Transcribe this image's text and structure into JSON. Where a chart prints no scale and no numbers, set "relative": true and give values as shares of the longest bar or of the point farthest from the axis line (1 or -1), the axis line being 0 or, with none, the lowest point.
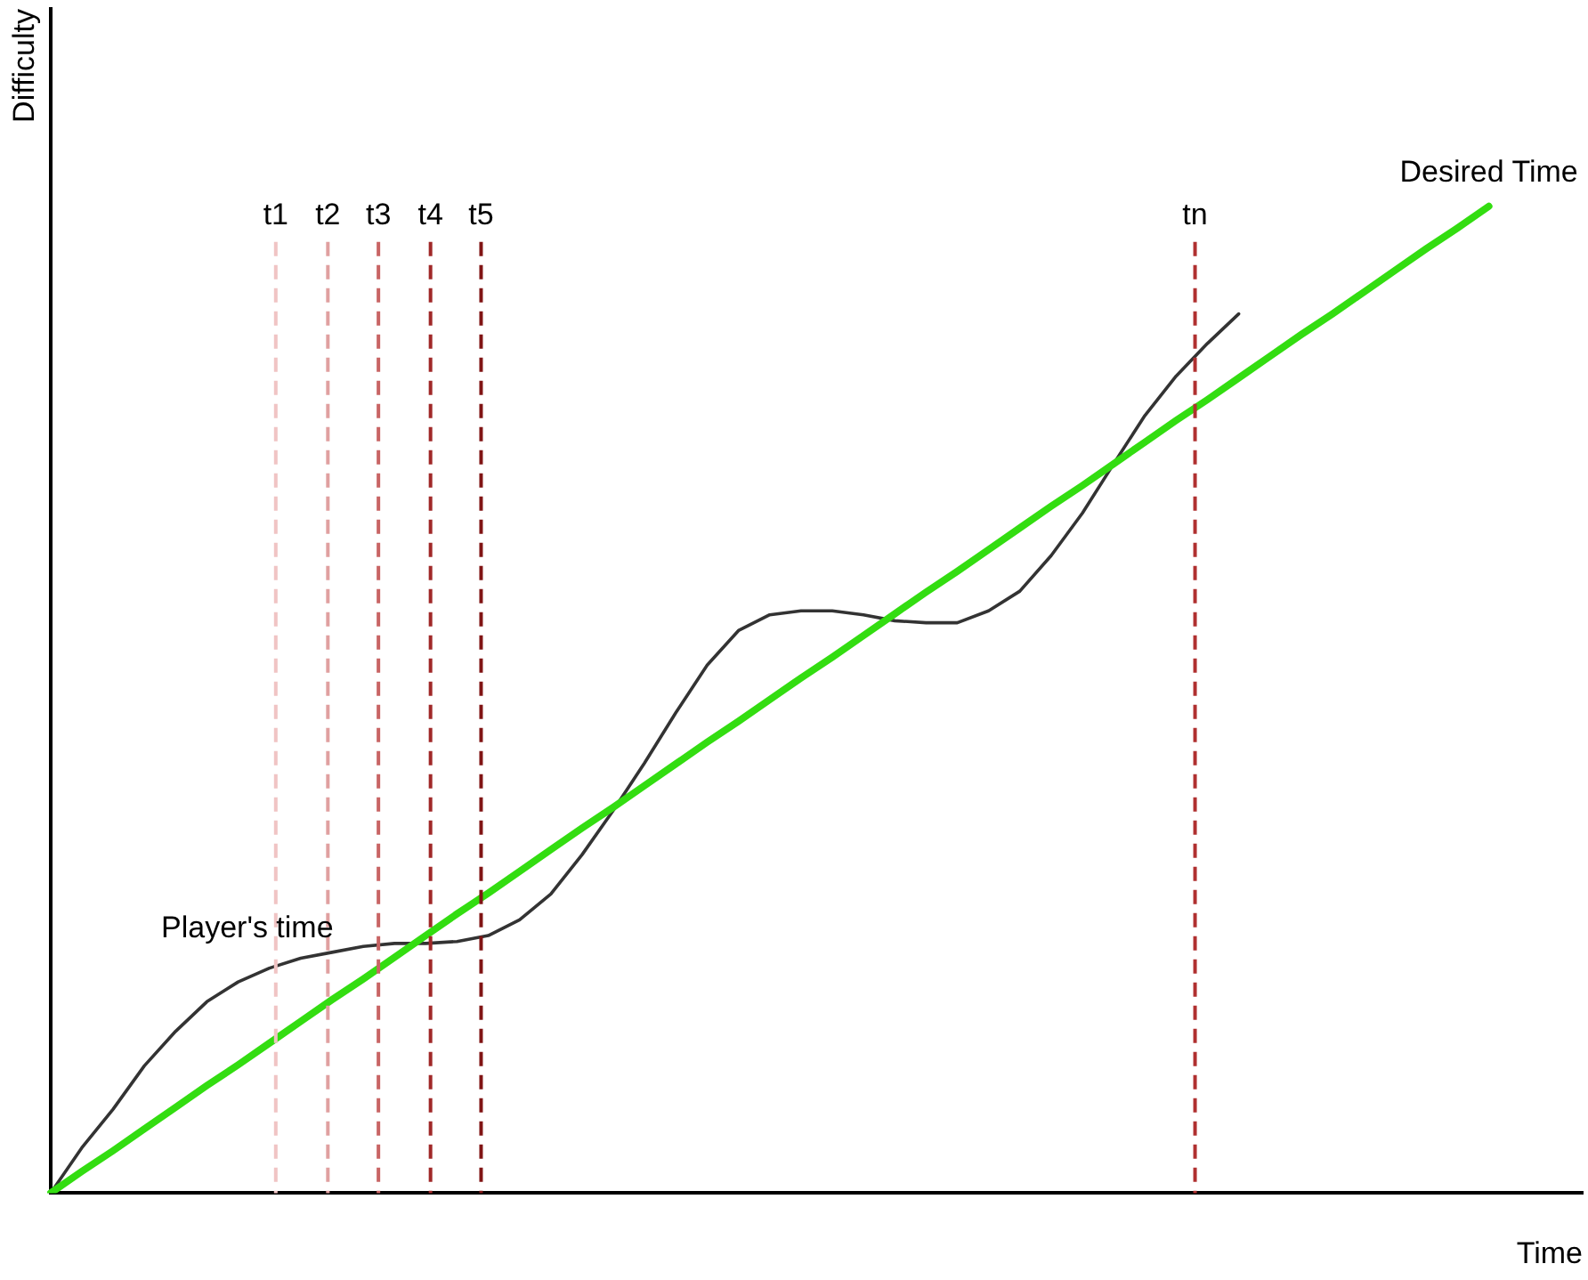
{
  "chart_data": {
    "type": "line",
    "relative": true,
    "xlabel": "Time",
    "ylabel": "Difficulty",
    "grid": false,
    "legend": false,
    "marker": "none",
    "line_style": "solid",
    "categories": [
      null,
      null,
      null,
      null,
      null,
      null,
      null,
      null,
      null,
      null,
      null,
      null,
      null,
      null,
      null,
      null,
      null,
      null,
      null,
      null,
      null,
      null,
      null,
      null,
      null,
      null,
      null,
      null,
      null,
      null,
      null,
      null,
      null,
      null,
      null,
      null,
      null,
      null,
      null,
      null,
      null,
      null,
      null,
      null,
      null,
      null,
      null,
      null,
      null,
      null
    ],
    "series": [
      {
        "name": "Desired Time",
        "color": "#33dd11",
        "values": [
          0,
          0.022,
          0.043,
          0.065,
          0.087,
          0.109,
          0.13,
          0.152,
          0.174,
          0.196,
          0.217,
          0.239,
          0.261,
          0.283,
          0.304,
          0.326,
          0.348,
          0.37,
          0.391,
          0.413,
          0.435,
          0.457,
          0.478,
          0.5,
          0.522,
          0.543,
          0.565,
          0.587,
          0.609,
          0.63,
          0.652,
          0.674,
          0.696,
          0.717,
          0.739,
          0.761,
          0.783,
          0.804,
          0.826,
          0.848,
          0.87,
          0.891,
          0.913,
          0.935,
          0.957,
          0.978,
          1,
          null,
          null,
          null
        ]
      },
      {
        "name": "Player's time",
        "color": "#333333",
        "values": [
          0,
          0.046,
          0.085,
          0.129,
          0.164,
          0.194,
          0.214,
          0.228,
          0.238,
          0.244,
          0.25,
          0.253,
          0.253,
          0.255,
          0.261,
          0.277,
          0.303,
          0.343,
          0.388,
          0.436,
          0.487,
          0.535,
          0.57,
          0.586,
          0.59,
          0.59,
          0.586,
          0.58,
          0.578,
          0.578,
          0.59,
          0.61,
          0.646,
          0.689,
          0.739,
          0.788,
          0.828,
          0.861,
          0.891,
          null,
          null,
          null,
          null,
          null,
          null,
          null,
          null,
          null,
          null,
          null
        ]
      }
    ],
    "annotations": [
      "t1",
      "t2",
      "t3",
      "t4",
      "t5",
      "tn"
    ]
  }
}
